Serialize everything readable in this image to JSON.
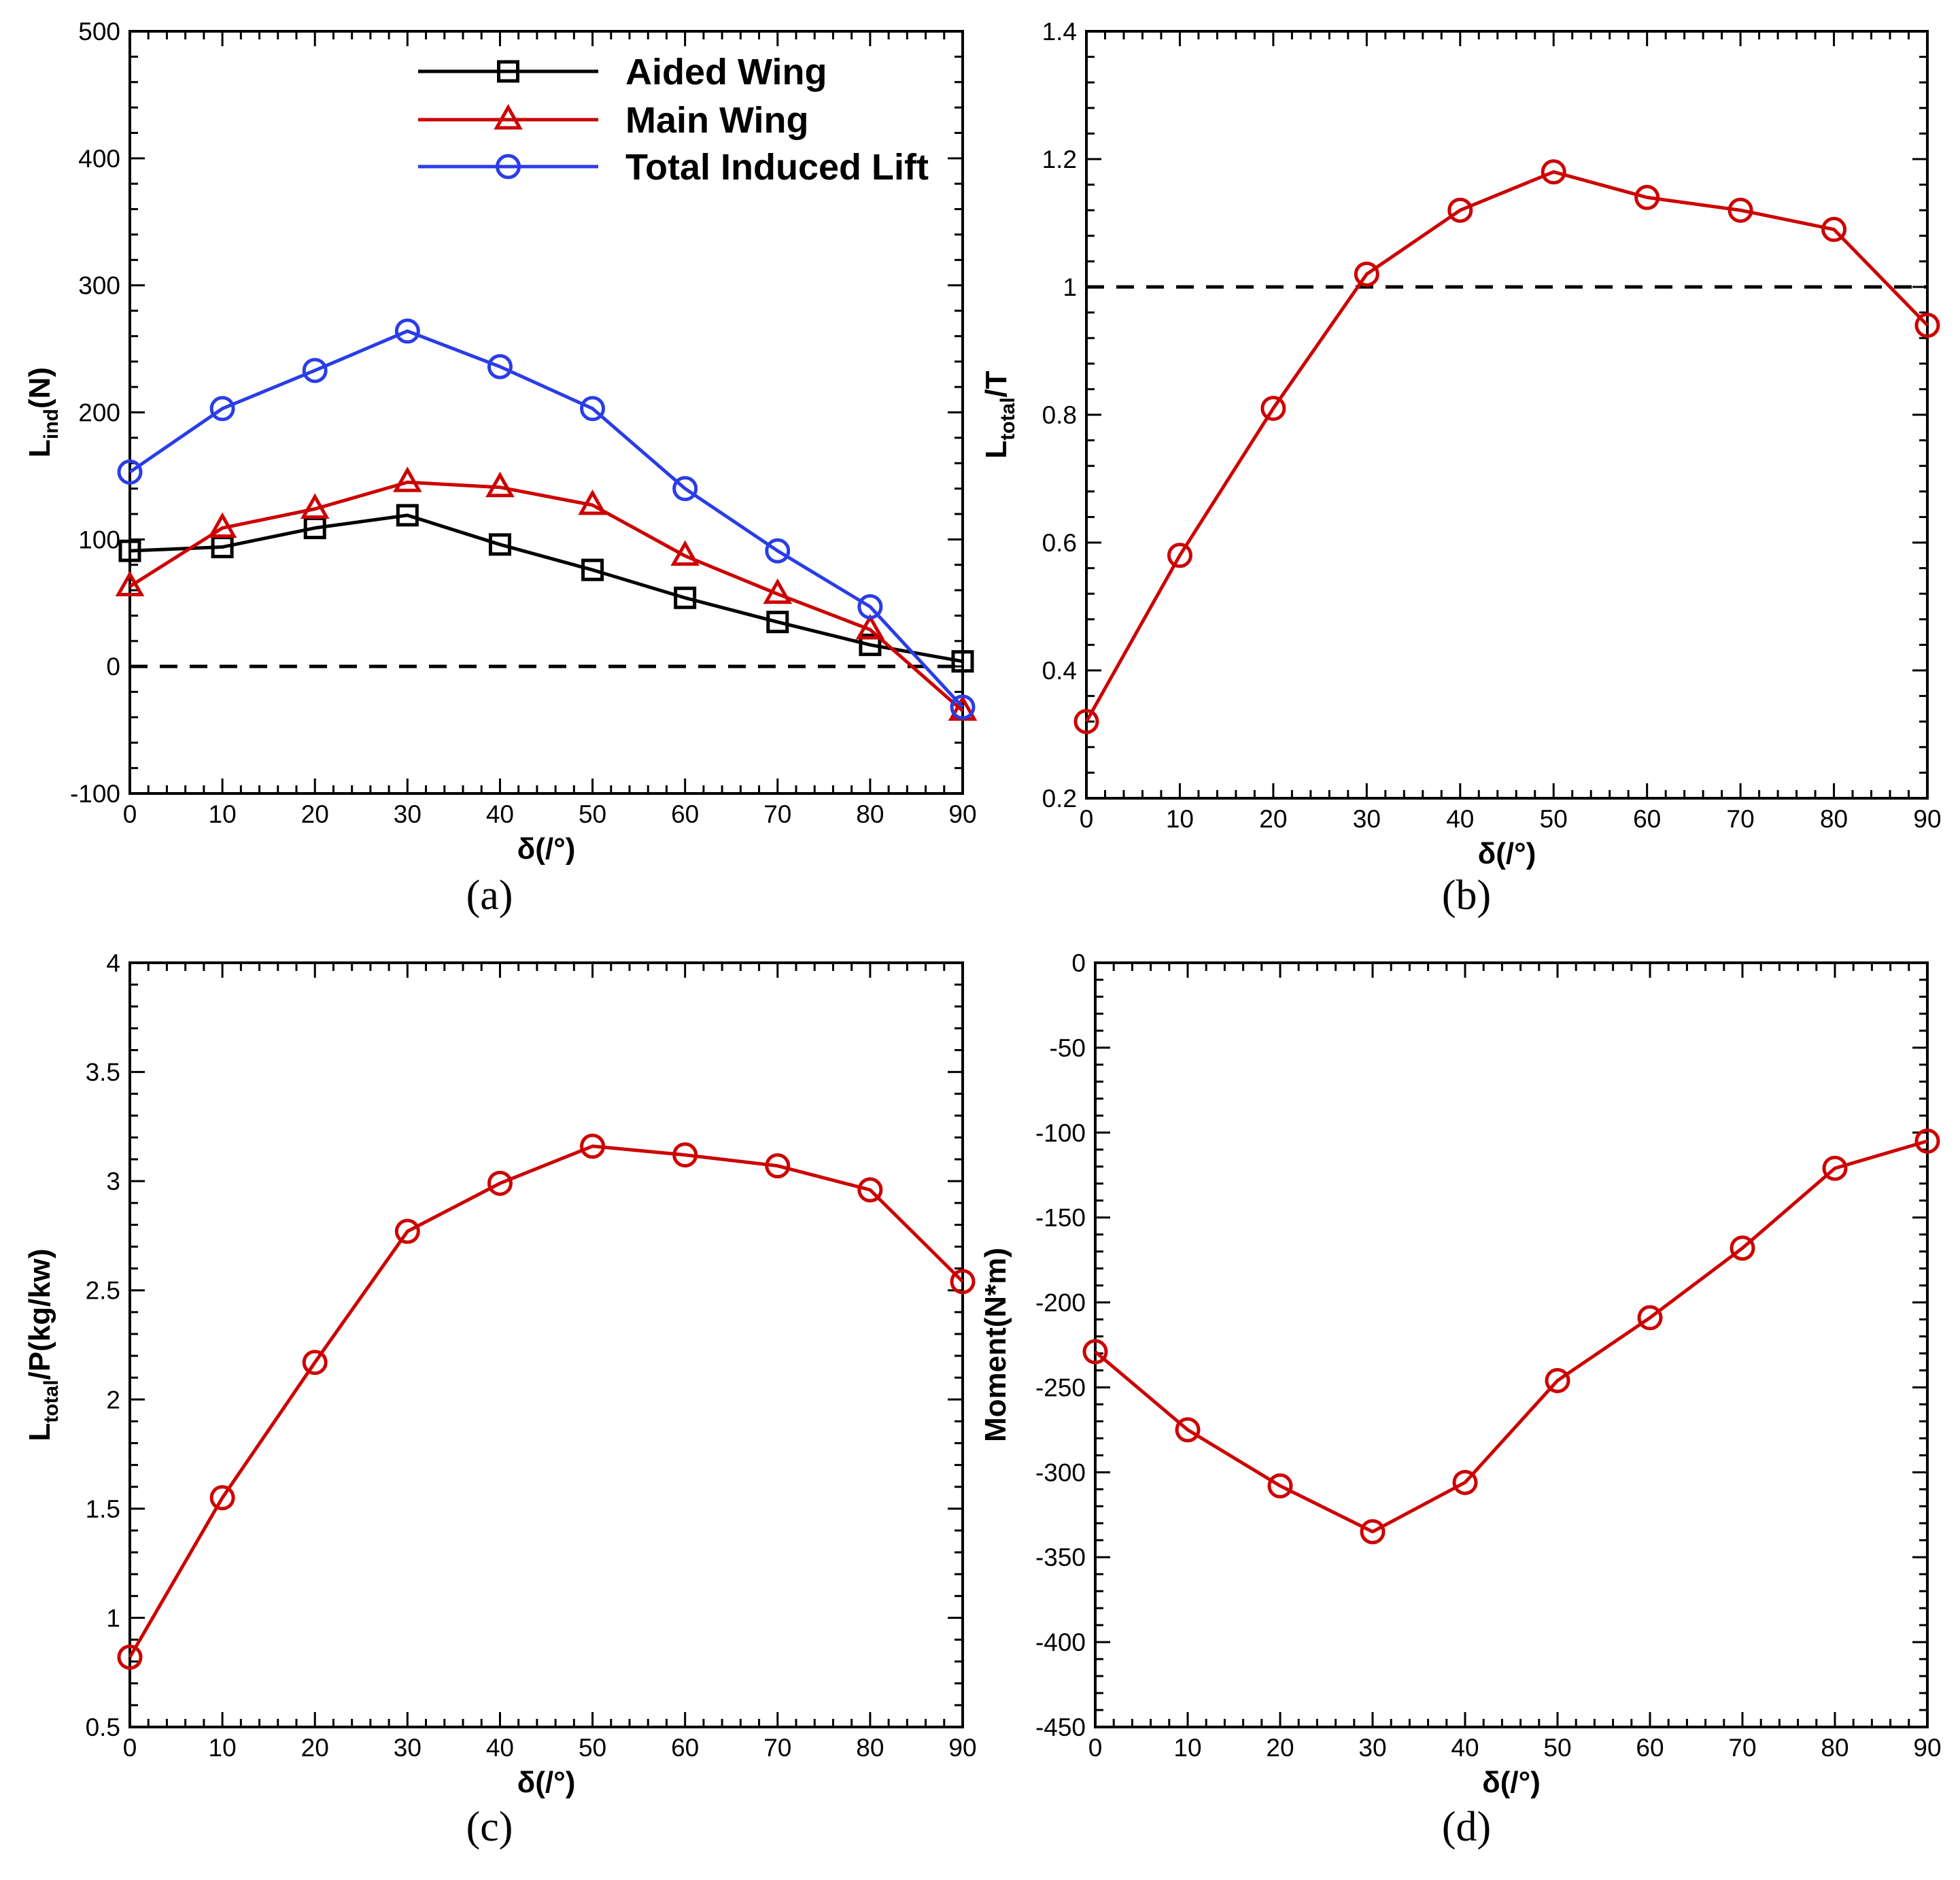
{
  "colors": {
    "black": "#000000",
    "red": "#cc0000",
    "blue": "#2a3de6"
  },
  "chart_data": [
    {
      "type": "line",
      "panel_label": "(a)",
      "ylabel": "L",
      "ylabel_sub": "ind",
      "ylabel_suffix": "(N)",
      "xlabel": "δ(/°)",
      "x": [
        0,
        10,
        20,
        30,
        40,
        50,
        60,
        70,
        80,
        90
      ],
      "xlim": [
        0,
        90
      ],
      "ylim": [
        -100,
        500
      ],
      "xticks": [
        0,
        10,
        20,
        30,
        40,
        50,
        60,
        70,
        80,
        90
      ],
      "yticks": [
        -100,
        0,
        100,
        200,
        300,
        400,
        500
      ],
      "reference_line": 0,
      "legend": "top-right",
      "series": [
        {
          "name": "Aided Wing",
          "color": "black",
          "marker": "square",
          "values": [
            91,
            94,
            109,
            119,
            96,
            76,
            54,
            35,
            17,
            4
          ]
        },
        {
          "name": "Main Wing",
          "color": "red",
          "marker": "triangle",
          "values": [
            63,
            109,
            124,
            145,
            141,
            127,
            87,
            57,
            29,
            -35
          ]
        },
        {
          "name": "Total Induced Lift",
          "color": "blue",
          "marker": "circle",
          "values": [
            153,
            203,
            233,
            264,
            236,
            203,
            140,
            91,
            47,
            -32
          ]
        }
      ]
    },
    {
      "type": "line",
      "panel_label": "(b)",
      "ylabel": "L",
      "ylabel_sub": "total",
      "ylabel_suffix": "/T",
      "xlabel": "δ(/°)",
      "x": [
        0,
        10,
        20,
        30,
        40,
        50,
        60,
        70,
        80,
        90
      ],
      "xlim": [
        0,
        90
      ],
      "ylim": [
        0.2,
        1.4
      ],
      "xticks": [
        0,
        10,
        20,
        30,
        40,
        50,
        60,
        70,
        80,
        90
      ],
      "yticks": [
        0.2,
        0.4,
        0.6,
        0.8,
        1.0,
        1.2,
        1.4
      ],
      "ytick_labels": [
        "0.2",
        "0.4",
        "0.6",
        "0.8",
        "1",
        "1.2",
        "1.4"
      ],
      "reference_line": 1,
      "series": [
        {
          "name": "L_total/T",
          "color": "red",
          "marker": "circle",
          "values": [
            0.32,
            0.58,
            0.81,
            1.02,
            1.12,
            1.18,
            1.14,
            1.12,
            1.09,
            0.94
          ]
        }
      ]
    },
    {
      "type": "line",
      "panel_label": "(c)",
      "ylabel": "L",
      "ylabel_sub": "total",
      "ylabel_suffix": "/P(kg/kw)",
      "xlabel": "δ(/°)",
      "x": [
        0,
        10,
        20,
        30,
        40,
        50,
        60,
        70,
        80,
        90
      ],
      "xlim": [
        0,
        90
      ],
      "ylim": [
        0.5,
        4
      ],
      "xticks": [
        0,
        10,
        20,
        30,
        40,
        50,
        60,
        70,
        80,
        90
      ],
      "yticks": [
        0.5,
        1,
        1.5,
        2,
        2.5,
        3,
        3.5,
        4
      ],
      "ytick_labels": [
        "0.5",
        "1",
        "1.5",
        "2",
        "2.5",
        "3",
        "3.5",
        "4"
      ],
      "series": [
        {
          "name": "L_total/P",
          "color": "red",
          "marker": "circle",
          "values": [
            0.82,
            1.55,
            2.17,
            2.77,
            2.99,
            3.16,
            3.12,
            3.07,
            2.96,
            2.54
          ]
        }
      ]
    },
    {
      "type": "line",
      "panel_label": "(d)",
      "ylabel": "Moment(N*m)",
      "ylabel_sub": "",
      "ylabel_suffix": "",
      "xlabel": "δ(/°)",
      "x": [
        0,
        10,
        20,
        30,
        40,
        50,
        60,
        70,
        80,
        90
      ],
      "xlim": [
        0,
        90
      ],
      "ylim": [
        -450,
        0
      ],
      "xticks": [
        0,
        10,
        20,
        30,
        40,
        50,
        60,
        70,
        80,
        90
      ],
      "yticks": [
        -450,
        -400,
        -350,
        -300,
        -250,
        -200,
        -150,
        -100,
        -50,
        0
      ],
      "series": [
        {
          "name": "Moment",
          "color": "red",
          "marker": "circle",
          "values": [
            -229,
            -275,
            -308,
            -335,
            -306,
            -246,
            -209,
            -168,
            -121,
            -105
          ]
        }
      ]
    }
  ]
}
